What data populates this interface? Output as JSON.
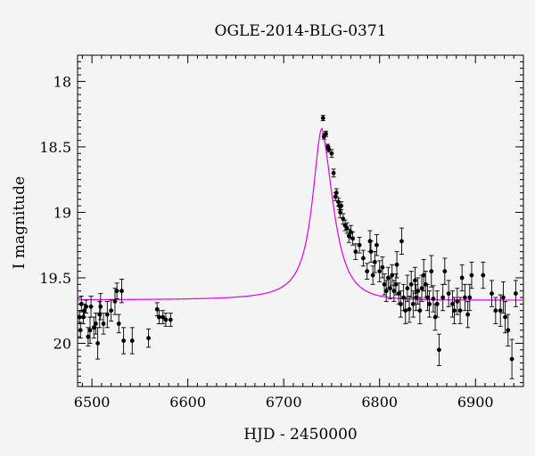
{
  "chart_data": {
    "type": "scatter",
    "title": "OGLE-2014-BLG-0371",
    "xlabel": "HJD - 2450000",
    "ylabel": "I magnitude",
    "xlim": [
      6485,
      6950
    ],
    "ylim": [
      20.33,
      17.8
    ],
    "y_inverted": true,
    "x_major_ticks": [
      6500,
      6600,
      6700,
      6800,
      6900
    ],
    "y_major_ticks": [
      18,
      18.5,
      19,
      19.5,
      20
    ],
    "x_tick_labels": [
      "6500",
      "6600",
      "6700",
      "6800",
      "6900"
    ],
    "y_tick_labels": [
      "18",
      "18.5",
      "19",
      "19.5",
      "20"
    ],
    "grid": false,
    "model_color": "#e600e6",
    "point_color": "#000000",
    "model": {
      "baseline_mag": 19.67,
      "peak_x": 6740,
      "peak_mag": 18.36,
      "rise_half_width_days": 12,
      "decay_days": 18
    },
    "series": [
      {
        "points": [
          [
            6487,
            19.8,
            0.05
          ],
          [
            6488,
            19.9,
            0.06
          ],
          [
            6489,
            19.7,
            0.06
          ],
          [
            6491,
            19.8,
            0.05
          ],
          [
            6492,
            19.75,
            0.05
          ],
          [
            6494,
            19.72,
            0.05
          ],
          [
            6496,
            19.95,
            0.07
          ],
          [
            6498,
            19.9,
            0.1
          ],
          [
            6499,
            19.72,
            0.08
          ],
          [
            6502,
            19.88,
            0.08
          ],
          [
            6504,
            19.85,
            0.08
          ],
          [
            6506,
            20.0,
            0.12
          ],
          [
            6508,
            19.78,
            0.1
          ],
          [
            6509,
            19.72,
            0.1
          ],
          [
            6512,
            19.85,
            0.08
          ],
          [
            6516,
            19.78,
            0.1
          ],
          [
            6520,
            19.75,
            0.08
          ],
          [
            6524,
            19.68,
            0.1
          ],
          [
            6526,
            19.6,
            0.06
          ],
          [
            6528,
            19.85,
            0.07
          ],
          [
            6531,
            19.6,
            0.09
          ],
          [
            6533,
            19.98,
            0.1
          ],
          [
            6542,
            19.98,
            0.1
          ],
          [
            6559,
            19.96,
            0.07
          ],
          [
            6568,
            19.74,
            0.05
          ],
          [
            6570,
            19.8,
            0.05
          ],
          [
            6574,
            19.8,
            0.05
          ],
          [
            6577,
            19.82,
            0.05
          ],
          [
            6582,
            19.82,
            0.05
          ],
          [
            6741,
            18.28,
            0.02
          ],
          [
            6742,
            18.42,
            0.02
          ],
          [
            6744,
            18.4,
            0.02
          ],
          [
            6746,
            18.5,
            0.02
          ],
          [
            6747,
            18.52,
            0.02
          ],
          [
            6750,
            18.55,
            0.03
          ],
          [
            6752,
            18.7,
            0.03
          ],
          [
            6754,
            18.88,
            0.03
          ],
          [
            6755,
            18.85,
            0.03
          ],
          [
            6757,
            18.92,
            0.03
          ],
          [
            6758,
            18.95,
            0.03
          ],
          [
            6759,
            19.0,
            0.04
          ],
          [
            6760,
            18.95,
            0.03
          ],
          [
            6762,
            19.05,
            0.04
          ],
          [
            6764,
            19.1,
            0.04
          ],
          [
            6766,
            19.12,
            0.04
          ],
          [
            6768,
            19.18,
            0.05
          ],
          [
            6770,
            19.15,
            0.05
          ],
          [
            6772,
            19.2,
            0.05
          ],
          [
            6775,
            19.3,
            0.06
          ],
          [
            6779,
            19.25,
            0.06
          ],
          [
            6783,
            19.35,
            0.06
          ],
          [
            6787,
            19.45,
            0.06
          ],
          [
            6790,
            19.22,
            0.08
          ],
          [
            6791,
            19.3,
            0.08
          ],
          [
            6793,
            19.48,
            0.07
          ],
          [
            6795,
            19.38,
            0.08
          ],
          [
            6797,
            19.25,
            0.08
          ],
          [
            6800,
            19.45,
            0.08
          ],
          [
            6803,
            19.42,
            0.08
          ],
          [
            6805,
            19.55,
            0.08
          ],
          [
            6807,
            19.6,
            0.08
          ],
          [
            6809,
            19.5,
            0.08
          ],
          [
            6811,
            19.58,
            0.08
          ],
          [
            6813,
            19.48,
            0.08
          ],
          [
            6815,
            19.6,
            0.08
          ],
          [
            6817,
            19.55,
            0.08
          ],
          [
            6818,
            19.4,
            0.1
          ],
          [
            6820,
            19.62,
            0.08
          ],
          [
            6822,
            19.7,
            0.1
          ],
          [
            6823,
            19.22,
            0.1
          ],
          [
            6825,
            19.65,
            0.1
          ],
          [
            6827,
            19.75,
            0.1
          ],
          [
            6829,
            19.58,
            0.1
          ],
          [
            6831,
            19.74,
            0.1
          ],
          [
            6833,
            19.55,
            0.1
          ],
          [
            6835,
            19.7,
            0.1
          ],
          [
            6837,
            19.52,
            0.1
          ],
          [
            6838,
            19.65,
            0.1
          ],
          [
            6840,
            19.6,
            0.1
          ],
          [
            6842,
            19.75,
            0.1
          ],
          [
            6844,
            19.58,
            0.1
          ],
          [
            6846,
            19.48,
            0.12
          ],
          [
            6848,
            19.55,
            0.1
          ],
          [
            6850,
            19.65,
            0.1
          ],
          [
            6852,
            19.7,
            0.1
          ],
          [
            6854,
            19.45,
            0.12
          ],
          [
            6856,
            19.66,
            0.1
          ],
          [
            6858,
            19.8,
            0.1
          ],
          [
            6860,
            19.7,
            0.1
          ],
          [
            6862,
            20.05,
            0.12
          ],
          [
            6866,
            19.65,
            0.1
          ],
          [
            6868,
            19.45,
            0.1
          ],
          [
            6872,
            19.62,
            0.1
          ],
          [
            6876,
            19.7,
            0.1
          ],
          [
            6878,
            19.75,
            0.1
          ],
          [
            6881,
            19.68,
            0.1
          ],
          [
            6884,
            19.75,
            0.1
          ],
          [
            6886,
            19.5,
            0.1
          ],
          [
            6889,
            19.65,
            0.1
          ],
          [
            6892,
            19.78,
            0.1
          ],
          [
            6894,
            19.65,
            0.1
          ],
          [
            6896,
            19.48,
            0.1
          ],
          [
            6908,
            19.48,
            0.1
          ],
          [
            6917,
            19.62,
            0.1
          ],
          [
            6921,
            19.75,
            0.1
          ],
          [
            6926,
            19.75,
            0.12
          ],
          [
            6929,
            19.65,
            0.12
          ],
          [
            6931,
            19.8,
            0.12
          ],
          [
            6934,
            19.9,
            0.12
          ],
          [
            6938,
            20.12,
            0.15
          ],
          [
            6942,
            19.62,
            0.1
          ]
        ]
      }
    ]
  }
}
